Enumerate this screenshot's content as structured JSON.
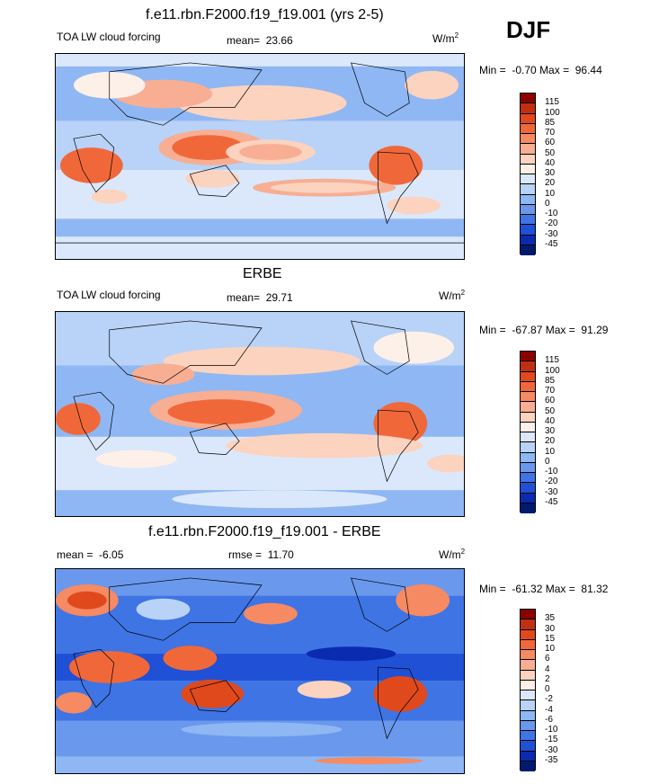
{
  "chart_data": [
    {
      "type": "heatmap",
      "title": "f.e11.rbn.F2000.f19_f19.001 (yrs 2-5)",
      "variable": "TOA LW cloud forcing",
      "mean_label": "mean=",
      "mean": "23.66",
      "units": "W/m",
      "units_sup": "2",
      "min_label": "Min =",
      "min": "-0.70",
      "max_label": "Max =",
      "max": "96.44",
      "levels": [
        "115",
        "100",
        "85",
        "70",
        "60",
        "50",
        "40",
        "30",
        "20",
        "10",
        "0",
        "-10",
        "-20",
        "-30",
        "-45"
      ],
      "colors": [
        "#8b0000",
        "#c0300f",
        "#e0491b",
        "#f0683a",
        "#f68a62",
        "#f7ae93",
        "#fbd3bf",
        "#fdf0e8",
        "#dbe8fb",
        "#b9d2f7",
        "#8fb7f3",
        "#6a98ec",
        "#3f74e4",
        "#1f50d6",
        "#0a2bb0",
        "#001a6e"
      ]
    },
    {
      "type": "heatmap",
      "title": "ERBE",
      "variable": "TOA LW cloud forcing",
      "mean_label": "mean=",
      "mean": "29.71",
      "units": "W/m",
      "units_sup": "2",
      "min_label": "Min =",
      "min": "-67.87",
      "max_label": "Max =",
      "max": "91.29",
      "levels": [
        "115",
        "100",
        "85",
        "70",
        "60",
        "50",
        "40",
        "30",
        "20",
        "10",
        "0",
        "-10",
        "-20",
        "-30",
        "-45"
      ],
      "colors": [
        "#8b0000",
        "#c0300f",
        "#e0491b",
        "#f0683a",
        "#f68a62",
        "#f7ae93",
        "#fbd3bf",
        "#fdf0e8",
        "#dbe8fb",
        "#b9d2f7",
        "#8fb7f3",
        "#6a98ec",
        "#3f74e4",
        "#1f50d6",
        "#0a2bb0",
        "#001a6e"
      ]
    },
    {
      "type": "heatmap",
      "title": "f.e11.rbn.F2000.f19_f19.001 - ERBE",
      "mean_label": "mean =",
      "mean": "-6.05",
      "rmse_label": "rmse =",
      "rmse": "11.70",
      "units": "W/m",
      "units_sup": "2",
      "min_label": "Min =",
      "min": "-61.32",
      "max_label": "Max =",
      "max": "81.32",
      "levels": [
        "35",
        "30",
        "15",
        "10",
        "6",
        "4",
        "2",
        "0",
        "-2",
        "-4",
        "-6",
        "-10",
        "-15",
        "-30",
        "-35"
      ],
      "colors": [
        "#8b0000",
        "#c0300f",
        "#e0491b",
        "#f0683a",
        "#f68a62",
        "#f7ae93",
        "#fbd3bf",
        "#fdf0e8",
        "#dbe8fb",
        "#b9d2f7",
        "#8fb7f3",
        "#6a98ec",
        "#3f74e4",
        "#1f50d6",
        "#0a2bb0",
        "#001a6e"
      ]
    }
  ],
  "season": "DJF"
}
